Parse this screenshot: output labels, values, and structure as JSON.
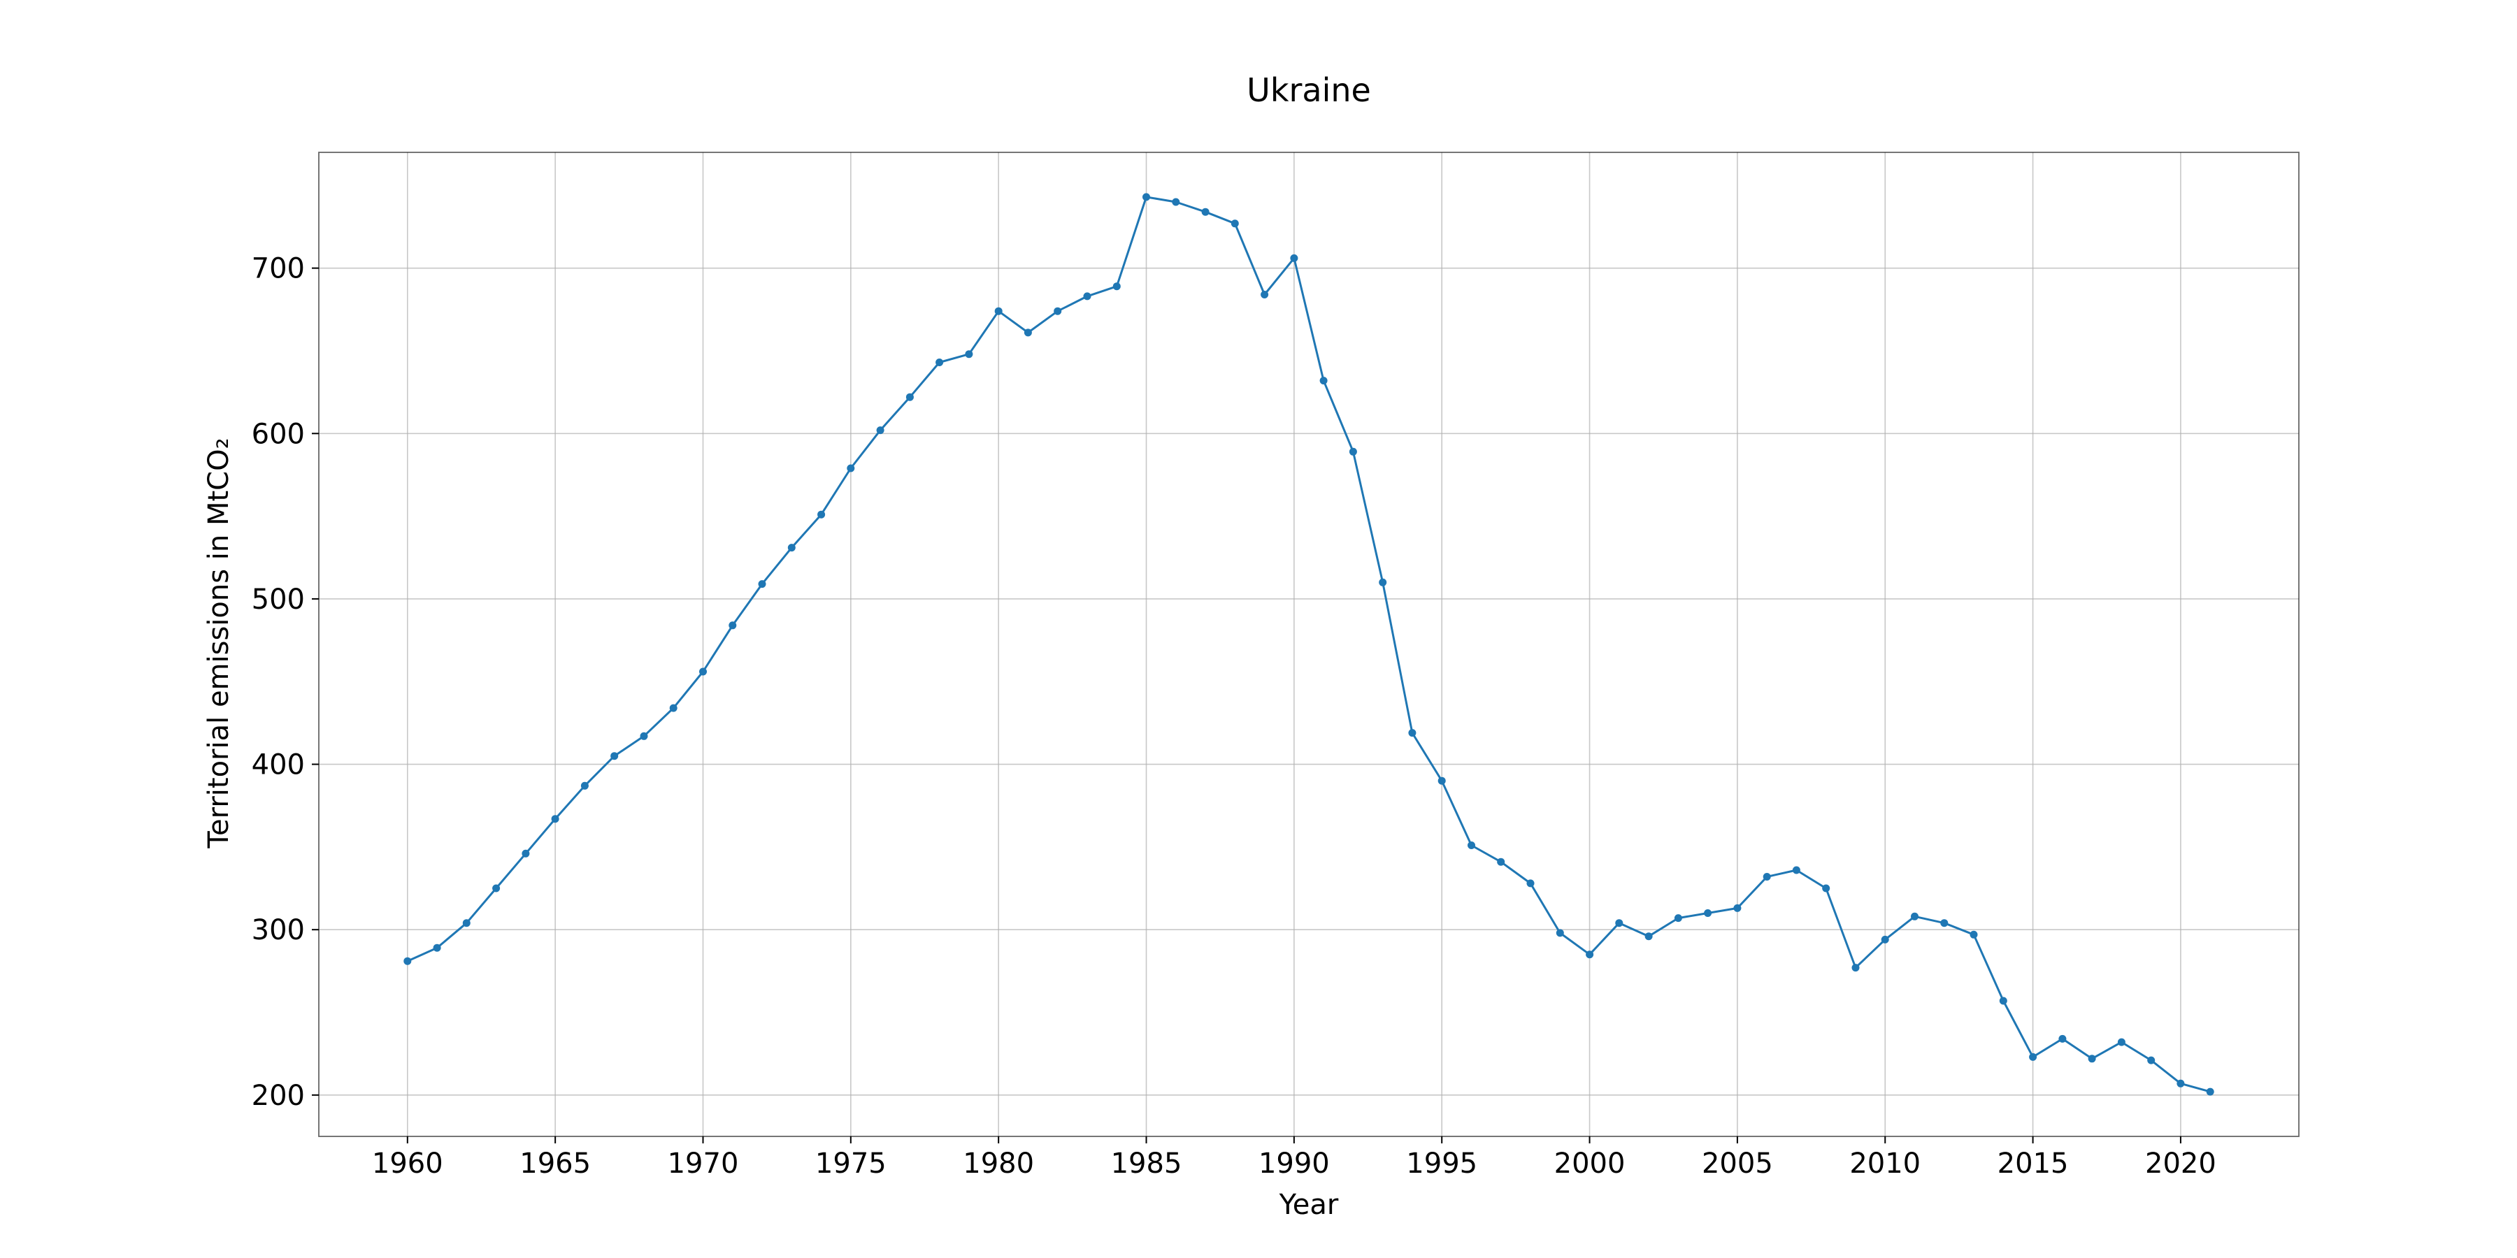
{
  "chart_data": {
    "type": "line",
    "title": "Ukraine",
    "xlabel": "Year",
    "ylabel": "Territorial emissions in MtCO₂",
    "xlim": [
      1957,
      2024
    ],
    "ylim": [
      175,
      770
    ],
    "xticks": [
      1960,
      1965,
      1970,
      1975,
      1980,
      1985,
      1990,
      1995,
      2000,
      2005,
      2010,
      2015,
      2020
    ],
    "yticks": [
      200,
      300,
      400,
      500,
      600,
      700
    ],
    "grid": true,
    "marker": "circle",
    "color": "#1f77b4",
    "x": [
      1960,
      1961,
      1962,
      1963,
      1964,
      1965,
      1966,
      1967,
      1968,
      1969,
      1970,
      1971,
      1972,
      1973,
      1974,
      1975,
      1976,
      1977,
      1978,
      1979,
      1980,
      1981,
      1982,
      1983,
      1984,
      1985,
      1986,
      1987,
      1988,
      1989,
      1990,
      1991,
      1992,
      1993,
      1994,
      1995,
      1996,
      1997,
      1998,
      1999,
      2000,
      2001,
      2002,
      2003,
      2004,
      2005,
      2006,
      2007,
      2008,
      2009,
      2010,
      2011,
      2012,
      2013,
      2014,
      2015,
      2016,
      2017,
      2018,
      2019,
      2020,
      2021
    ],
    "y": [
      281,
      289,
      304,
      325,
      346,
      367,
      387,
      405,
      417,
      434,
      456,
      484,
      509,
      531,
      551,
      579,
      602,
      622,
      643,
      648,
      674,
      661,
      674,
      683,
      689,
      743,
      740,
      734,
      727,
      684,
      706,
      632,
      589,
      510,
      419,
      390,
      351,
      341,
      328,
      298,
      285,
      304,
      296,
      307,
      310,
      313,
      332,
      336,
      325,
      277,
      294,
      308,
      304,
      297,
      257,
      223,
      234,
      222,
      232,
      221,
      207,
      202
    ]
  }
}
